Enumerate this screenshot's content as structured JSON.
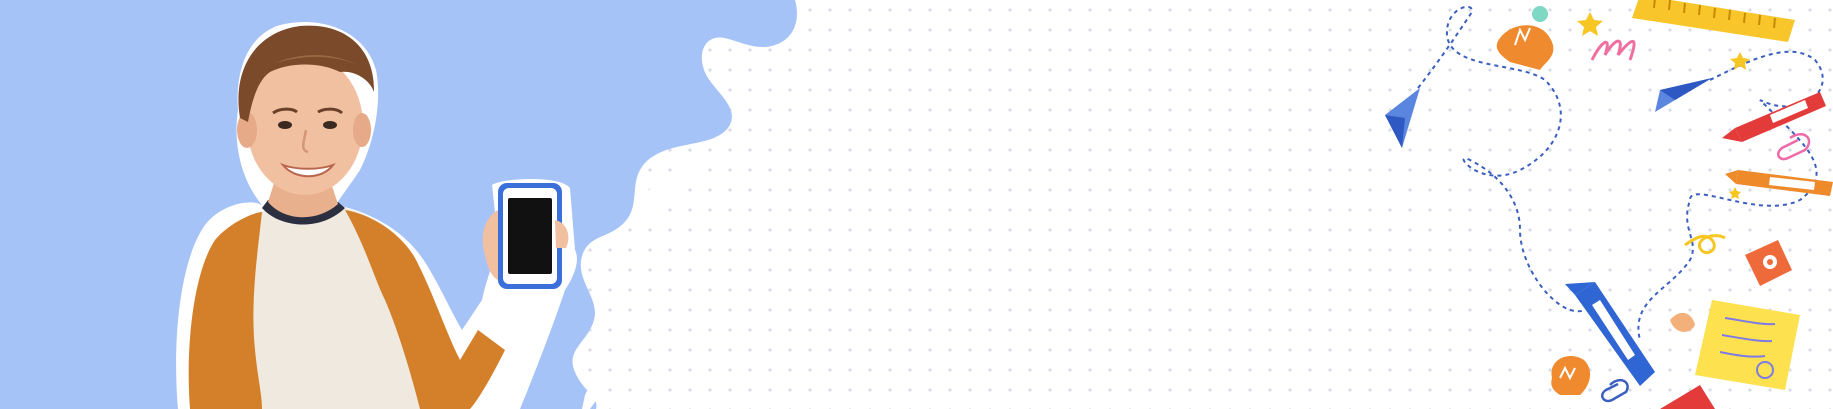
{
  "banner": {
    "background_color": "#ffffff",
    "dot_color": "#d9dde6",
    "panel_color": "#a6c3f8"
  },
  "hero": {
    "subject": "boy-holding-phone",
    "phone_screen": "blank"
  },
  "decorations": {
    "icons": [
      "paper-plane-icon",
      "light-bulb-icon",
      "ruler-icon",
      "star-icon",
      "crayon-icon",
      "paper-clip-icon",
      "pencil-sharpener-icon",
      "sticky-note-icon",
      "scribble-icon",
      "dashed-path"
    ]
  }
}
